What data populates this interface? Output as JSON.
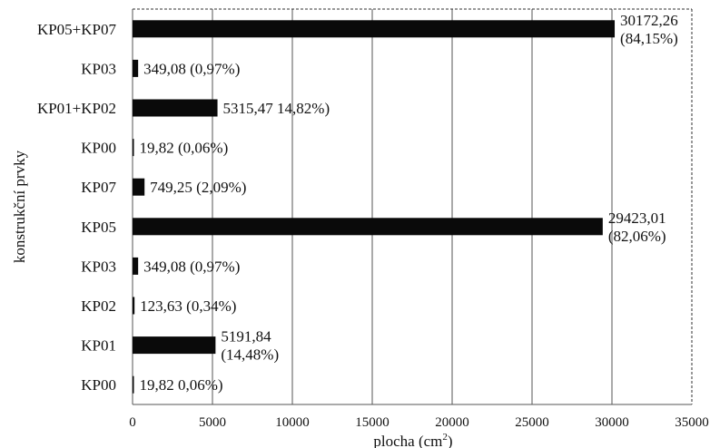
{
  "chart_data": {
    "type": "bar",
    "orientation": "horizontal",
    "categories": [
      "KP05+KP07",
      "KP03",
      "KP01+KP02",
      "KP00",
      "KP07",
      "KP05",
      "KP03",
      "KP02",
      "KP01",
      "KP00"
    ],
    "values": [
      30172.26,
      349.08,
      5315.47,
      19.82,
      749.25,
      29423.01,
      349.08,
      123.63,
      5191.84,
      19.82
    ],
    "data_labels": [
      [
        "30172,26",
        "(84,15%)"
      ],
      [
        "349,08 (0,97%)"
      ],
      [
        "5315,47 14,82%)"
      ],
      [
        "19,82 (0,06%)"
      ],
      [
        "749,25 (2,09%)"
      ],
      [
        "29423,01",
        "(82,06%)"
      ],
      [
        "349,08 (0,97%)"
      ],
      [
        "123,63 (0,34%)"
      ],
      [
        "5191,84",
        "(14,48%)"
      ],
      [
        "19,82 0,06%)"
      ]
    ],
    "xlabel": "plocha (cm",
    "xlabel_sup": "2",
    "xlabel_close": ")",
    "ylabel": "konstrukční prvky",
    "xlim": [
      0,
      35000
    ],
    "xticks": [
      0,
      5000,
      10000,
      15000,
      20000,
      25000,
      30000,
      35000
    ],
    "xtick_labels": [
      "0",
      "5000",
      "10000",
      "15000",
      "20000",
      "25000",
      "30000",
      "35000"
    ],
    "grid": "vertical",
    "bar_color": "#0a0a0a"
  }
}
